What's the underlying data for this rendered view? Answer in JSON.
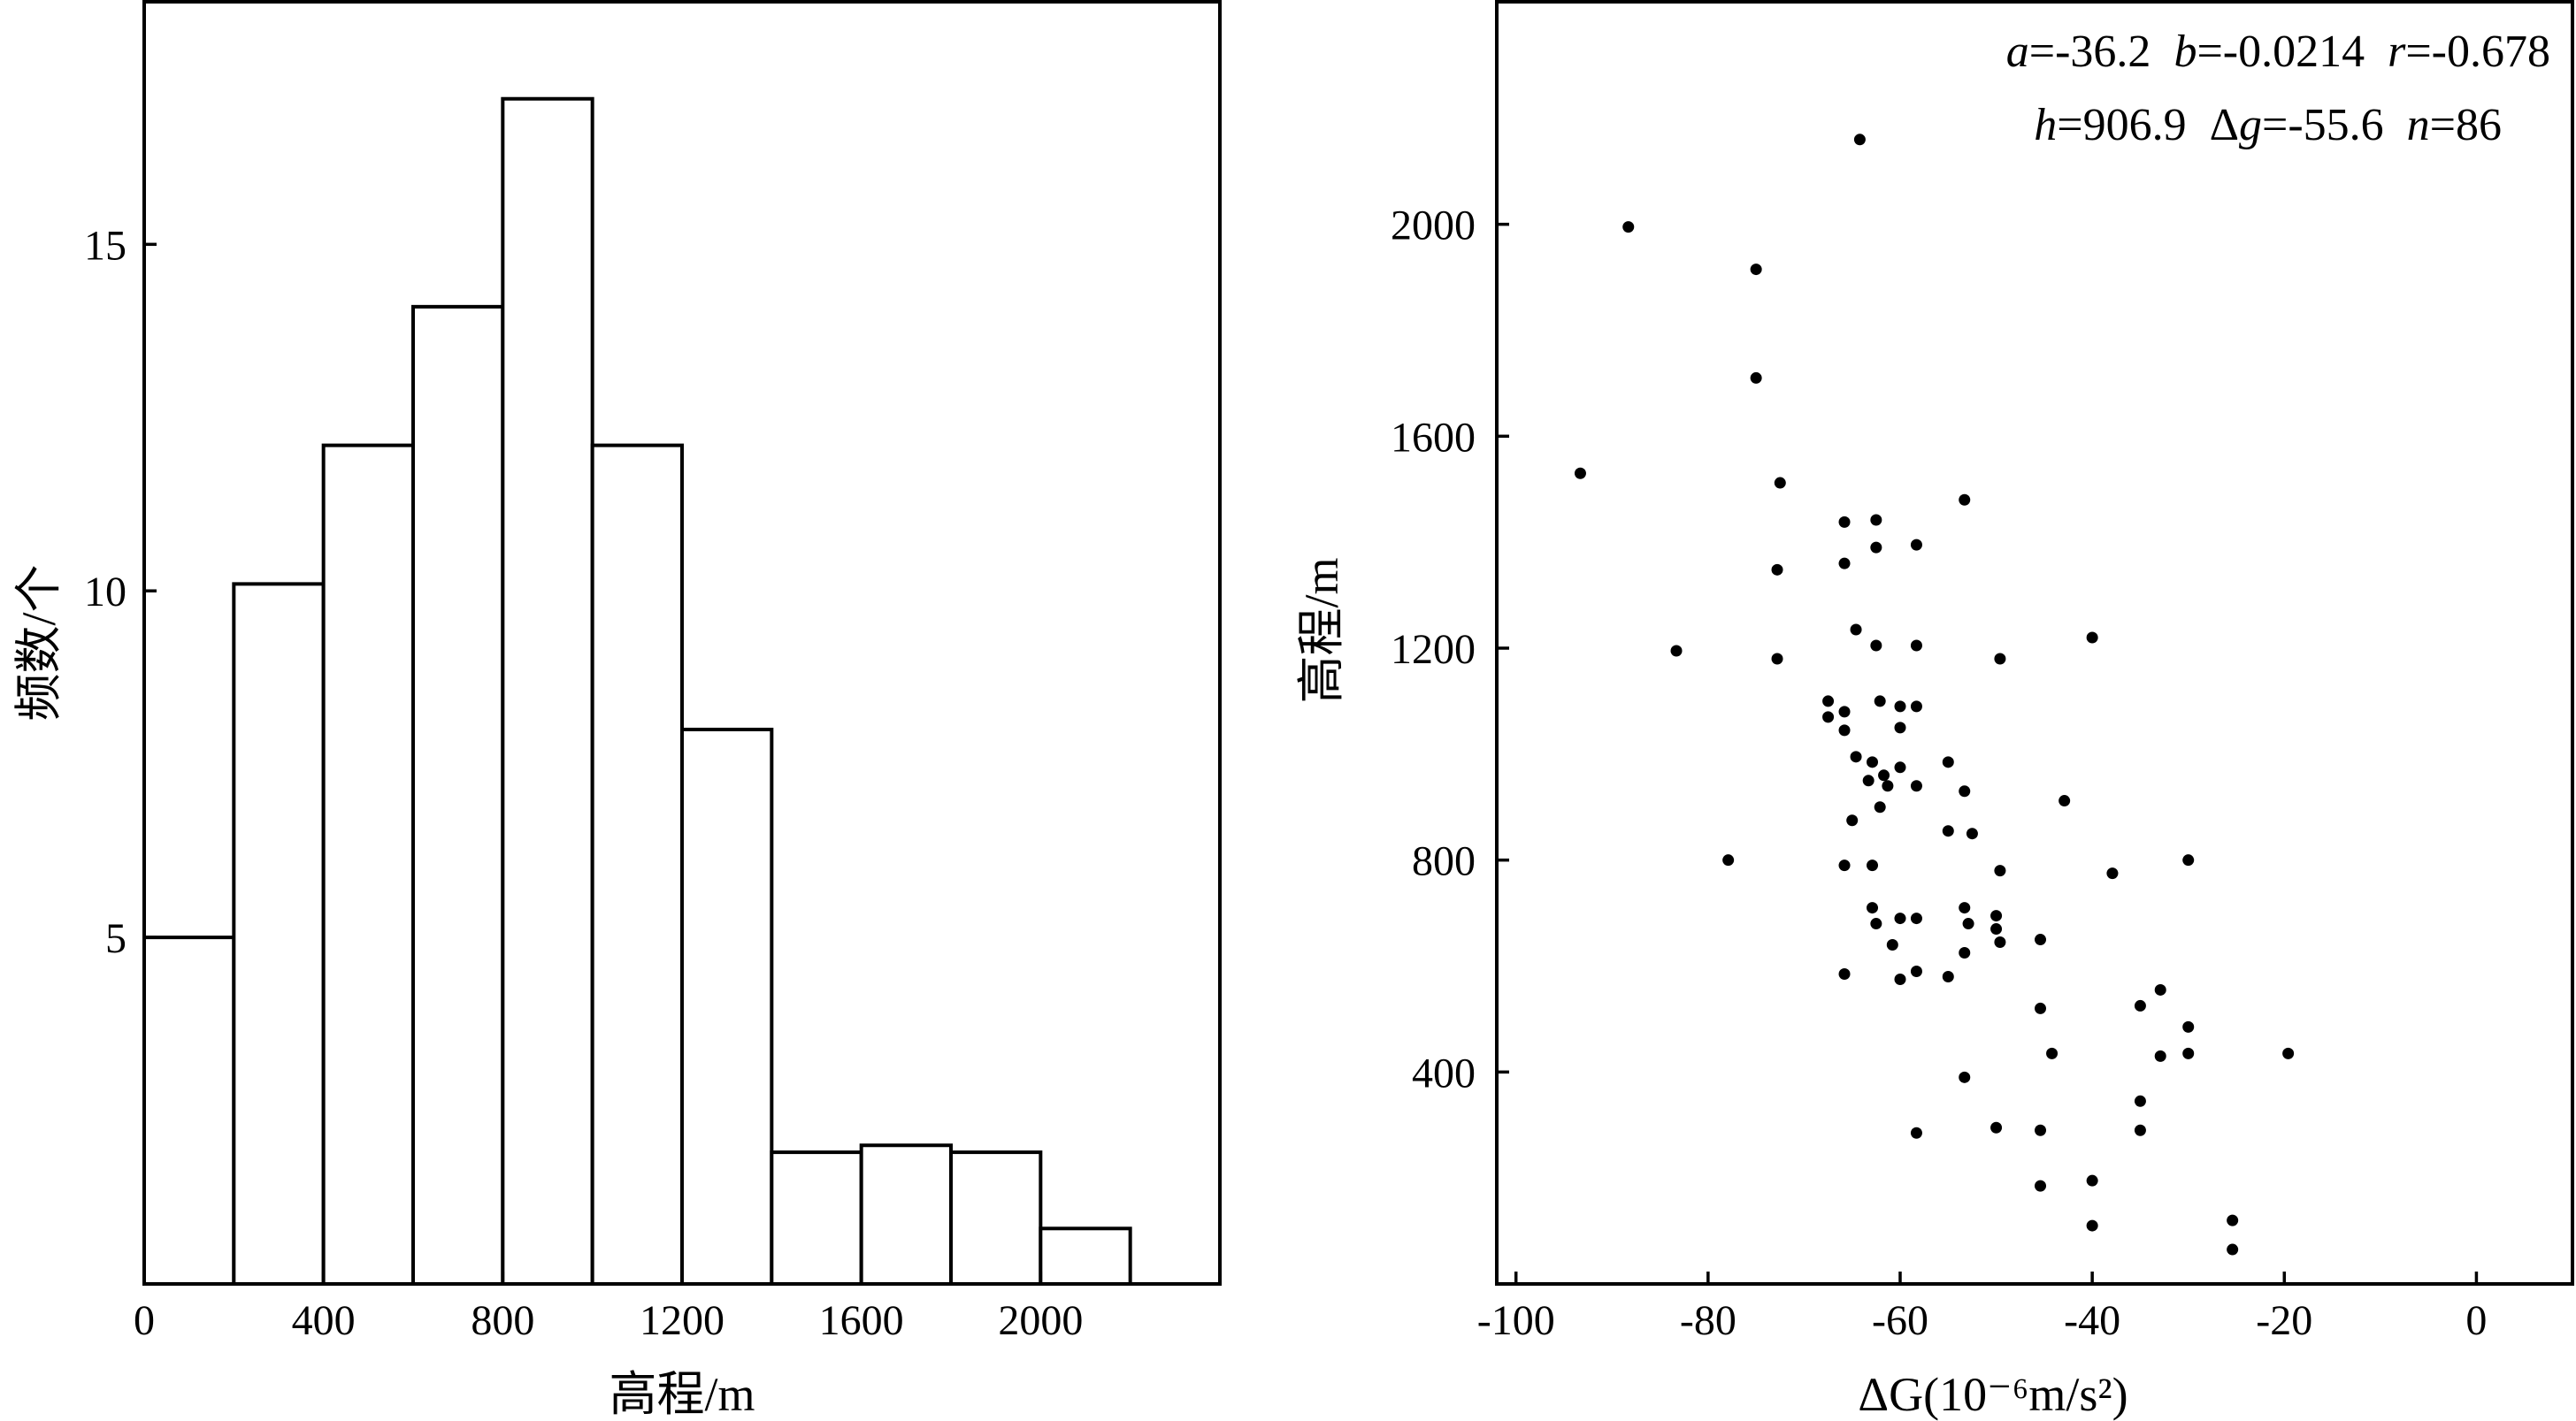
{
  "chart_data": [
    {
      "type": "bar",
      "xlabel": "高程/m",
      "ylabel": "频数/个",
      "xlim": [
        0,
        2400
      ],
      "ylim": [
        0,
        18.5
      ],
      "xticks": [
        "0",
        "400",
        "800",
        "1200",
        "1600",
        "2000"
      ],
      "yticks": [
        "5",
        "10",
        "15"
      ],
      "bin_edges": [
        0,
        200,
        400,
        600,
        800,
        1000,
        1200,
        1400,
        1600,
        1800,
        2000,
        2200
      ],
      "values": [
        5,
        10.1,
        12.1,
        14.1,
        17.1,
        12.1,
        8.0,
        1.9,
        2.0,
        1.9,
        0.8
      ],
      "grid": false
    },
    {
      "type": "scatter",
      "xlabel": "ΔG(10⁻⁶m/s²)",
      "ylabel": "高程/m",
      "xlim": [
        -102,
        10
      ],
      "ylim": [
        0,
        2420
      ],
      "xticks": [
        "-100",
        "-80",
        "-60",
        "-40",
        "-20",
        "0"
      ],
      "yticks": [
        "400",
        "800",
        "1200",
        "1600",
        "2000"
      ],
      "grid": false,
      "annotations": {
        "line1": [
          {
            "text": "a",
            "italic": true
          },
          {
            "text": "=-36.2  ",
            "italic": false
          },
          {
            "text": "b",
            "italic": true
          },
          {
            "text": "=-0.0214  ",
            "italic": false
          },
          {
            "text": "r",
            "italic": true
          },
          {
            "text": "=-0.678",
            "italic": false
          }
        ],
        "line2": [
          {
            "text": "h",
            "italic": true
          },
          {
            "text": "=906.9  Δ",
            "italic": false
          },
          {
            "text": "g",
            "italic": true
          },
          {
            "text": "=-55.6  ",
            "italic": false
          },
          {
            "text": "n",
            "italic": true
          },
          {
            "text": "=86",
            "italic": false
          }
        ]
      },
      "points": [
        [
          -88.3,
          1995
        ],
        [
          -75.0,
          1915
        ],
        [
          -75.0,
          1710
        ],
        [
          -93.3,
          1530
        ],
        [
          -72.5,
          1512
        ],
        [
          -53.3,
          1480
        ],
        [
          -64.2,
          2160
        ],
        [
          -62.5,
          1442
        ],
        [
          -65.8,
          1438
        ],
        [
          -62.5,
          1390
        ],
        [
          -58.3,
          1395
        ],
        [
          -72.8,
          1348
        ],
        [
          -65.8,
          1360
        ],
        [
          -64.6,
          1235
        ],
        [
          -62.5,
          1205
        ],
        [
          -58.3,
          1205
        ],
        [
          -83.3,
          1195
        ],
        [
          -72.8,
          1180
        ],
        [
          -49.6,
          1180
        ],
        [
          -40.0,
          1220
        ],
        [
          -67.5,
          1100
        ],
        [
          -67.5,
          1070
        ],
        [
          -65.8,
          1080
        ],
        [
          -65.8,
          1045
        ],
        [
          -62.1,
          1100
        ],
        [
          -60.0,
          1090
        ],
        [
          -58.3,
          1090
        ],
        [
          -60.0,
          1050
        ],
        [
          -64.6,
          995
        ],
        [
          -62.9,
          985
        ],
        [
          -60.0,
          975
        ],
        [
          -55.0,
          985
        ],
        [
          -63.3,
          950
        ],
        [
          -61.7,
          960
        ],
        [
          -61.3,
          940
        ],
        [
          -58.3,
          940
        ],
        [
          -53.3,
          930
        ],
        [
          -62.1,
          900
        ],
        [
          -42.9,
          912
        ],
        [
          -65.0,
          875
        ],
        [
          -55.0,
          855
        ],
        [
          -52.5,
          850
        ],
        [
          -77.9,
          800
        ],
        [
          -65.8,
          790
        ],
        [
          -62.9,
          790
        ],
        [
          -49.6,
          780
        ],
        [
          -37.9,
          775
        ],
        [
          -30.0,
          800
        ],
        [
          -62.9,
          710
        ],
        [
          -53.3,
          710
        ],
        [
          -62.5,
          680
        ],
        [
          -60.0,
          690
        ],
        [
          -58.3,
          690
        ],
        [
          -52.9,
          680
        ],
        [
          -50.0,
          695
        ],
        [
          -50.0,
          670
        ],
        [
          -60.8,
          640
        ],
        [
          -49.6,
          645
        ],
        [
          -45.4,
          650
        ],
        [
          -53.3,
          625
        ],
        [
          -65.8,
          585
        ],
        [
          -58.3,
          590
        ],
        [
          -60.0,
          575
        ],
        [
          -55.0,
          580
        ],
        [
          -32.9,
          555
        ],
        [
          -35.0,
          525
        ],
        [
          -45.4,
          520
        ],
        [
          -30.0,
          485
        ],
        [
          -44.2,
          435
        ],
        [
          -32.9,
          430
        ],
        [
          -30.0,
          435
        ],
        [
          -19.6,
          435
        ],
        [
          -53.3,
          390
        ],
        [
          -35.0,
          345
        ],
        [
          -50.0,
          295
        ],
        [
          -45.4,
          290
        ],
        [
          -35.0,
          290
        ],
        [
          -58.3,
          285
        ],
        [
          -40.0,
          195
        ],
        [
          -45.4,
          185
        ],
        [
          -40.0,
          110
        ],
        [
          -25.4,
          120
        ],
        [
          -25.4,
          65
        ]
      ]
    }
  ]
}
